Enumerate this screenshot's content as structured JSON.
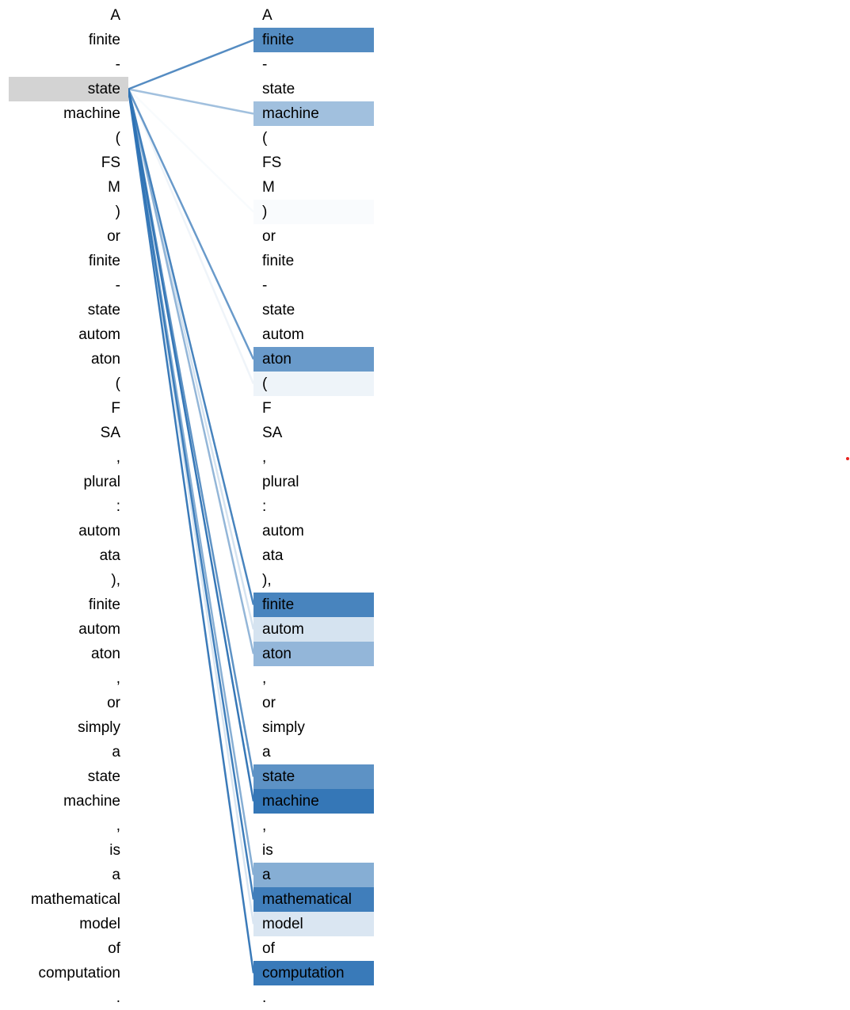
{
  "tokens": [
    "A",
    "finite",
    "-",
    "state",
    "machine",
    "(",
    "FS",
    "M",
    ")",
    "or",
    "finite",
    "-",
    "state",
    "autom",
    "aton",
    "(",
    "F",
    "SA",
    ",",
    "plural",
    ":",
    "autom",
    "ata",
    "),",
    "finite",
    "autom",
    "aton",
    ",",
    "or",
    "simply",
    "a",
    "state",
    "machine",
    ",",
    "is",
    "a",
    "mathematical",
    "model",
    "of",
    "computation",
    "."
  ],
  "selected_index": 3,
  "attention": [
    {
      "target": 1,
      "weight": 0.82
    },
    {
      "target": 4,
      "weight": 0.45
    },
    {
      "target": 8,
      "weight": 0.03
    },
    {
      "target": 14,
      "weight": 0.72
    },
    {
      "target": 15,
      "weight": 0.08
    },
    {
      "target": 24,
      "weight": 0.88
    },
    {
      "target": 25,
      "weight": 0.2
    },
    {
      "target": 26,
      "weight": 0.52
    },
    {
      "target": 31,
      "weight": 0.78
    },
    {
      "target": 32,
      "weight": 0.97
    },
    {
      "target": 35,
      "weight": 0.58
    },
    {
      "target": 36,
      "weight": 0.92
    },
    {
      "target": 37,
      "weight": 0.18
    },
    {
      "target": 39,
      "weight": 0.95
    }
  ],
  "colors": {
    "attention_base": "#2f73b5",
    "selected_bg": "#d3d3d3",
    "marker": "#e8221e"
  }
}
